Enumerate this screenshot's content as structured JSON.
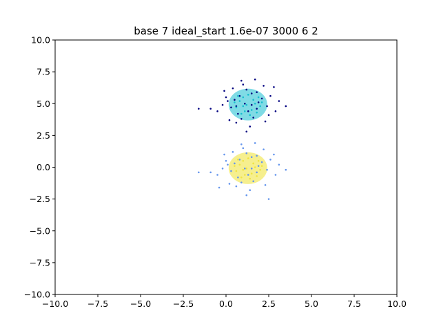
{
  "chart_data": {
    "type": "scatter",
    "title": "base 7 ideal_start 1.6e-07 3000 6 2",
    "xlabel": "",
    "ylabel": "",
    "xlim": [
      -10,
      10
    ],
    "ylim": [
      -10,
      10
    ],
    "xticks": [
      -10,
      -7.5,
      -5,
      -2.5,
      0,
      2.5,
      5,
      7.5,
      10
    ],
    "xtick_labels": [
      "−10.0",
      "−7.5",
      "−5.0",
      "−2.5",
      "0.0",
      "2.5",
      "5.0",
      "7.5",
      "10.0"
    ],
    "yticks": [
      -10,
      -7.5,
      -5,
      -2.5,
      0,
      2.5,
      5,
      7.5,
      10
    ],
    "ytick_labels": [
      "−10.0",
      "−7.5",
      "−5.0",
      "−2.5",
      "0.0",
      "2.5",
      "5.0",
      "7.5",
      "10.0"
    ],
    "grid": false,
    "legend": false,
    "series": [
      {
        "color": "#000080",
        "points": [
          [
            1.1,
            5.0
          ],
          [
            0.5,
            5.3
          ],
          [
            1.8,
            4.6
          ],
          [
            1.2,
            6.1
          ],
          [
            0.9,
            3.8
          ],
          [
            2.1,
            5.4
          ],
          [
            0.3,
            4.7
          ],
          [
            1.5,
            5.8
          ],
          [
            0.7,
            4.2
          ],
          [
            1.9,
            5.1
          ],
          [
            2.4,
            4.8
          ],
          [
            0.1,
            5.2
          ],
          [
            1.3,
            4.4
          ],
          [
            0.8,
            5.6
          ],
          [
            1.6,
            3.9
          ],
          [
            2.6,
            5.6
          ],
          [
            -0.2,
            4.9
          ],
          [
            1.0,
            6.5
          ],
          [
            2.9,
            4.4
          ],
          [
            -0.5,
            4.4
          ],
          [
            0.4,
            6.2
          ],
          [
            2.2,
            6.4
          ],
          [
            1.4,
            3.2
          ],
          [
            0.6,
            3.5
          ],
          [
            3.1,
            5.2
          ],
          [
            -0.1,
            6.0
          ],
          [
            2.8,
            6.3
          ],
          [
            1.7,
            6.9
          ],
          [
            0.2,
            3.7
          ],
          [
            2.3,
            3.6
          ],
          [
            -0.9,
            4.6
          ],
          [
            3.5,
            4.8
          ],
          [
            1.2,
            2.8
          ],
          [
            0.9,
            6.8
          ],
          [
            -1.6,
            4.6
          ],
          [
            2.5,
            4.1
          ],
          [
            1.8,
            5.9
          ],
          [
            0.0,
            5.5
          ],
          [
            1.5,
            4.9
          ],
          [
            0.6,
            4.8
          ]
        ]
      },
      {
        "color": "#17becf",
        "points": [
          [
            1.2,
            4.9
          ],
          [
            0.8,
            5.2
          ],
          [
            1.5,
            4.5
          ],
          [
            1.0,
            5.5
          ],
          [
            1.7,
            5.0
          ],
          [
            0.6,
            4.7
          ],
          [
            1.3,
            5.7
          ],
          [
            2.0,
            4.8
          ],
          [
            0.9,
            4.2
          ],
          [
            1.6,
            5.3
          ],
          [
            1.1,
            4.4
          ],
          [
            0.5,
            5.1
          ],
          [
            1.9,
            5.5
          ],
          [
            1.4,
            4.1
          ],
          [
            0.7,
            5.6
          ],
          [
            2.1,
            5.1
          ],
          [
            1.0,
            4.8
          ],
          [
            1.8,
            4.3
          ]
        ]
      },
      {
        "color": "#6495ed",
        "points": [
          [
            1.1,
            -0.1
          ],
          [
            0.5,
            0.3
          ],
          [
            1.8,
            -0.4
          ],
          [
            1.2,
            1.1
          ],
          [
            0.9,
            -1.2
          ],
          [
            2.1,
            0.4
          ],
          [
            0.3,
            -0.3
          ],
          [
            1.5,
            0.8
          ],
          [
            0.7,
            -0.8
          ],
          [
            1.9,
            0.1
          ],
          [
            2.4,
            -0.2
          ],
          [
            0.1,
            0.2
          ],
          [
            1.3,
            -0.6
          ],
          [
            0.8,
            0.6
          ],
          [
            1.6,
            -1.1
          ],
          [
            2.6,
            0.6
          ],
          [
            -0.2,
            -0.1
          ],
          [
            1.0,
            1.5
          ],
          [
            2.9,
            -0.6
          ],
          [
            -0.5,
            -0.6
          ],
          [
            0.4,
            1.2
          ],
          [
            2.2,
            1.4
          ],
          [
            1.4,
            -1.8
          ],
          [
            0.6,
            -1.5
          ],
          [
            3.1,
            0.2
          ],
          [
            -0.1,
            1.0
          ],
          [
            2.8,
            1.0
          ],
          [
            1.7,
            1.9
          ],
          [
            0.2,
            -1.3
          ],
          [
            2.3,
            -1.4
          ],
          [
            -0.9,
            -0.4
          ],
          [
            3.5,
            -0.2
          ],
          [
            1.2,
            -2.2
          ],
          [
            0.9,
            1.8
          ],
          [
            -1.6,
            -0.4
          ],
          [
            2.5,
            -2.5
          ],
          [
            1.8,
            0.9
          ],
          [
            0.0,
            0.5
          ],
          [
            1.5,
            -0.1
          ],
          [
            -0.4,
            -1.6
          ]
        ]
      },
      {
        "color": "#f0e442",
        "points": [
          [
            1.2,
            -0.1
          ],
          [
            0.8,
            0.2
          ],
          [
            1.5,
            -0.5
          ],
          [
            1.0,
            0.5
          ],
          [
            1.7,
            0.0
          ],
          [
            0.6,
            -0.3
          ],
          [
            1.3,
            0.7
          ],
          [
            2.0,
            -0.2
          ],
          [
            0.9,
            -0.8
          ],
          [
            1.6,
            0.3
          ],
          [
            1.1,
            -0.6
          ],
          [
            0.5,
            0.1
          ],
          [
            1.9,
            0.5
          ],
          [
            1.4,
            -0.9
          ],
          [
            0.7,
            0.6
          ],
          [
            2.1,
            0.1
          ],
          [
            1.0,
            -0.2
          ],
          [
            1.8,
            -0.7
          ]
        ]
      }
    ]
  }
}
